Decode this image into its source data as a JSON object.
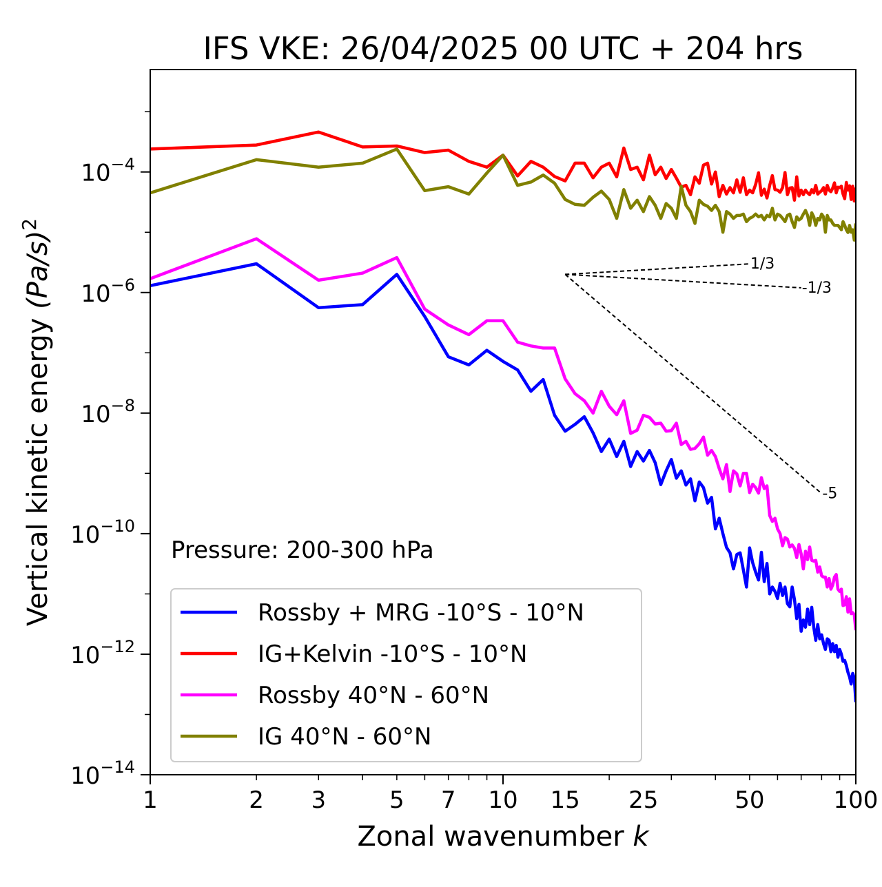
{
  "chart_data": {
    "type": "line",
    "title": "IFS VKE: 26/04/2025 00 UTC + 204 hrs",
    "xlabel": "Zonal wavenumber",
    "xlabel_var": "k",
    "ylabel_main": "Vertical kinetic energy",
    "ylabel_unit": "(Pa/s)",
    "ylabel_exp": "2",
    "xscale": "log",
    "yscale": "log",
    "xlim": [
      1,
      100
    ],
    "ylim": [
      1e-14,
      0.005
    ],
    "xticks": [
      {
        "value": 1,
        "label": "1"
      },
      {
        "value": 2,
        "label": "2"
      },
      {
        "value": 3,
        "label": "3"
      },
      {
        "value": 5,
        "label": "5"
      },
      {
        "value": 7,
        "label": "7"
      },
      {
        "value": 10,
        "label": "10"
      },
      {
        "value": 15,
        "label": "15"
      },
      {
        "value": 25,
        "label": "25"
      },
      {
        "value": 50,
        "label": "50"
      },
      {
        "value": 100,
        "label": "100"
      }
    ],
    "yticks": [
      {
        "exp": -14,
        "base": "10",
        "sup": "−14"
      },
      {
        "exp": -12,
        "base": "10",
        "sup": "−12"
      },
      {
        "exp": -10,
        "base": "10",
        "sup": "−10"
      },
      {
        "exp": -8,
        "base": "10",
        "sup": "−8"
      },
      {
        "exp": -6,
        "base": "10",
        "sup": "−6"
      },
      {
        "exp": -4,
        "base": "10",
        "sup": "−4"
      }
    ],
    "annotation": "Pressure: 200-300 hPa",
    "legend_position": "lower-left",
    "series": [
      {
        "name": "Rossby + MRG -10°S - 10°N",
        "color": "#0000ff",
        "x": [
          1,
          2,
          3,
          4,
          5,
          6,
          7,
          8,
          9,
          10,
          11,
          12,
          13,
          14,
          15,
          16,
          17,
          18,
          19,
          20,
          21,
          22,
          23,
          24,
          25,
          26,
          27,
          28,
          29,
          30,
          31,
          32,
          33,
          34,
          35,
          36,
          37,
          38,
          39,
          40,
          41,
          42,
          43,
          44,
          45,
          46,
          47,
          48,
          49,
          50,
          51,
          52,
          53,
          54,
          55,
          56,
          57,
          58,
          59,
          60,
          61,
          62,
          63,
          64,
          65,
          66,
          67,
          68,
          69,
          70,
          71,
          72,
          73,
          74,
          75,
          76,
          77,
          78,
          79,
          80,
          81,
          82,
          83,
          84,
          85,
          86,
          87,
          88,
          89,
          90,
          91,
          92,
          93,
          94,
          95,
          96,
          97,
          98,
          99,
          100
        ],
        "y": [
          1.3e-06,
          3e-06,
          5.6e-07,
          6.3e-07,
          2e-06,
          4e-07,
          8.6e-08,
          6.3e-08,
          1.1e-07,
          7.2e-08,
          5.2e-08,
          2.3e-08,
          3.6e-08,
          9.2e-09,
          5e-09,
          6.5e-09,
          8.7e-09,
          4.7e-09,
          2.3e-09,
          3.7e-09,
          1.9e-09,
          3.4e-09,
          1.3e-09,
          2.3e-09,
          1.6e-09,
          2.4e-09,
          1.5e-09,
          6.5e-10,
          1.1e-09,
          1.7e-09,
          8.3e-10,
          1.1e-09,
          6.4e-10,
          8.1e-10,
          3.5e-10,
          7.2e-10,
          5.8e-10,
          3.2e-10,
          4e-10,
          1.2e-10,
          1.8e-10,
          1e-10,
          5.9e-11,
          4.8e-11,
          2.6e-11,
          4.5e-11,
          4.8e-11,
          2.5e-11,
          1.3e-11,
          5.8e-11,
          3.3e-11,
          2.3e-11,
          1.7e-11,
          4.9e-11,
          1.6e-11,
          3.2e-11,
          1e-11,
          1.3e-11,
          1.1e-11,
          8.4e-12,
          1.5e-11,
          9.4e-12,
          1.3e-11,
          6.9e-12,
          6.1e-12,
          1.3e-11,
          8.1e-12,
          3.9e-12,
          6.7e-12,
          2.4e-12,
          3.7e-12,
          2.8e-12,
          5.6e-12,
          3.1e-12,
          6e-12,
          2.8e-12,
          1.7e-12,
          3.1e-12,
          1.8e-12,
          2.1e-12,
          1.5e-12,
          1.2e-12,
          1.8e-12,
          1.7e-12,
          1.1e-12,
          1.5e-12,
          1.1e-12,
          1.4e-12,
          8.9e-13,
          1.2e-12,
          1e-12,
          7.6e-13,
          7.9e-13,
          6.5e-13,
          5e-13,
          4.2e-13,
          3.2e-13,
          4.8e-13,
          4e-13,
          1.6e-13
        ]
      },
      {
        "name": "IG+Kelvin -10°S - 10°N",
        "color": "#ff0000",
        "x": [
          1,
          2,
          3,
          4,
          5,
          6,
          7,
          8,
          9,
          10,
          11,
          12,
          13,
          14,
          15,
          16,
          17,
          18,
          19,
          20,
          21,
          22,
          23,
          24,
          25,
          26,
          27,
          28,
          29,
          30,
          31,
          32,
          33,
          34,
          35,
          36,
          37,
          38,
          39,
          40,
          41,
          42,
          43,
          44,
          45,
          46,
          47,
          48,
          49,
          50,
          51,
          52,
          53,
          54,
          55,
          56,
          57,
          58,
          59,
          60,
          61,
          62,
          63,
          64,
          65,
          66,
          67,
          68,
          69,
          70,
          71,
          72,
          73,
          74,
          75,
          76,
          77,
          78,
          79,
          80,
          81,
          82,
          83,
          84,
          85,
          86,
          87,
          88,
          89,
          90,
          91,
          92,
          93,
          94,
          95,
          96,
          97,
          98,
          99,
          100
        ],
        "y": [
          0.00024,
          0.00028,
          0.00046,
          0.00026,
          0.00027,
          0.00021,
          0.00023,
          0.00015,
          0.00012,
          0.00019,
          8.6e-05,
          0.00015,
          0.00012,
          8.4e-05,
          7.1e-05,
          0.00014,
          0.00014,
          8e-05,
          0.00012,
          0.00014,
          8.3e-05,
          0.00025,
          0.00011,
          0.00012,
          7.4e-05,
          0.00019,
          9e-05,
          0.00012,
          7.8e-05,
          0.00011,
          7.9e-05,
          5.6e-05,
          6e-05,
          4.2e-05,
          8.3e-05,
          6.5e-05,
          0.00013,
          0.00014,
          6.3e-05,
          0.0001,
          3.9e-05,
          6e-05,
          4.3e-05,
          5.5e-05,
          4.5e-05,
          7.4e-05,
          4.6e-05,
          8e-05,
          4.2e-05,
          5e-05,
          4.5e-05,
          6.2e-05,
          9.7e-05,
          4.1e-05,
          5.2e-05,
          3.7e-05,
          6e-05,
          8.7e-05,
          5.1e-05,
          5e-05,
          4.6e-05,
          5.5e-05,
          9.8e-05,
          4.2e-05,
          5.4e-05,
          5.5e-05,
          3.4e-05,
          8.3e-05,
          4e-05,
          5e-05,
          4.2e-05,
          5e-05,
          4.5e-05,
          4.2e-05,
          5.1e-05,
          4.5e-05,
          6e-05,
          4.3e-05,
          4.6e-05,
          4.9e-05,
          5.5e-05,
          4.3e-05,
          6e-05,
          5e-05,
          4.7e-05,
          5.4e-05,
          6.6e-05,
          4.5e-05,
          5.6e-05,
          5.5e-05,
          5.8e-05,
          4.3e-05,
          3.6e-05,
          6.7e-05,
          5e-05,
          5.9e-05,
          3.5e-05,
          5.8e-05,
          3.3e-05,
          5.5e-05
        ]
      },
      {
        "name": "Rossby 40°N - 60°N",
        "color": "#ff00ff",
        "x": [
          1,
          2,
          3,
          4,
          5,
          6,
          7,
          8,
          9,
          10,
          11,
          12,
          13,
          14,
          15,
          16,
          17,
          18,
          19,
          20,
          21,
          22,
          23,
          24,
          25,
          26,
          27,
          28,
          29,
          30,
          31,
          32,
          33,
          34,
          35,
          36,
          37,
          38,
          39,
          40,
          41,
          42,
          43,
          44,
          45,
          46,
          47,
          48,
          49,
          50,
          51,
          52,
          53,
          54,
          55,
          56,
          57,
          58,
          59,
          60,
          61,
          62,
          63,
          64,
          65,
          66,
          67,
          68,
          69,
          70,
          71,
          72,
          73,
          74,
          75,
          76,
          77,
          78,
          79,
          80,
          81,
          82,
          83,
          84,
          85,
          86,
          87,
          88,
          89,
          90,
          91,
          92,
          93,
          94,
          95,
          96,
          97,
          98,
          99,
          100
        ],
        "y": [
          1.7e-06,
          7.8e-06,
          1.6e-06,
          2.1e-06,
          3.8e-06,
          5.3e-07,
          2.9e-07,
          2e-07,
          3.4e-07,
          3.4e-07,
          1.5e-07,
          1.3e-07,
          1.2e-07,
          1.2e-07,
          3.7e-08,
          2.1e-08,
          1.6e-08,
          1e-08,
          2.3e-08,
          1.3e-08,
          9.4e-09,
          1.6e-08,
          4.6e-09,
          5.2e-09,
          9.2e-09,
          8.5e-09,
          6.6e-09,
          6.8e-09,
          5e-09,
          5.1e-09,
          6.8e-09,
          3e-09,
          3.4e-09,
          2.5e-09,
          2.6e-09,
          3.1e-09,
          4e-09,
          2e-09,
          2.4e-09,
          1.9e-09,
          1.2e-09,
          8.1e-10,
          1.4e-09,
          5e-10,
          1.1e-09,
          9.8e-10,
          6.2e-10,
          1e-09,
          1e-09,
          4.8e-10,
          6.6e-10,
          5.8e-10,
          4.7e-10,
          8.5e-10,
          5.6e-10,
          6.2e-10,
          2e-10,
          1.6e-10,
          1.8e-10,
          1.2e-10,
          1e-10,
          6.3e-11,
          8.6e-11,
          8.1e-11,
          6e-11,
          6.5e-11,
          5.7e-11,
          4e-11,
          6.6e-11,
          4.6e-11,
          2.6e-11,
          5.1e-11,
          3.7e-11,
          6e-11,
          3.6e-11,
          3.5e-11,
          3.6e-11,
          2.3e-11,
          2.8e-11,
          2e-11,
          1.9e-11,
          1.9e-11,
          1.3e-11,
          1.8e-11,
          1.2e-11,
          1.4e-11,
          1.9e-11,
          2.1e-11,
          1.2e-11,
          1.1e-11,
          1.2e-11,
          6.4e-12,
          6.6e-12,
          9e-12,
          5e-12,
          8.3e-12,
          4.7e-12,
          4.9e-12,
          4.5e-12,
          2.5e-12
        ]
      },
      {
        "name": "IG 40°N - 60°N",
        "color": "#808000",
        "x": [
          1,
          2,
          3,
          4,
          5,
          6,
          7,
          8,
          9,
          10,
          11,
          12,
          13,
          14,
          15,
          16,
          17,
          18,
          19,
          20,
          21,
          22,
          23,
          24,
          25,
          26,
          27,
          28,
          29,
          30,
          31,
          32,
          33,
          34,
          35,
          36,
          37,
          38,
          39,
          40,
          41,
          42,
          43,
          44,
          45,
          46,
          47,
          48,
          49,
          50,
          51,
          52,
          53,
          54,
          55,
          56,
          57,
          58,
          59,
          60,
          61,
          62,
          63,
          64,
          65,
          66,
          67,
          68,
          69,
          70,
          71,
          72,
          73,
          74,
          75,
          76,
          77,
          78,
          79,
          80,
          81,
          82,
          83,
          84,
          85,
          86,
          87,
          88,
          89,
          90,
          91,
          92,
          93,
          94,
          95,
          96,
          97,
          98,
          99,
          100
        ],
        "y": [
          4.5e-05,
          0.00016,
          0.00012,
          0.00014,
          0.00024,
          4.9e-05,
          5.7e-05,
          4.3e-05,
          9.6e-05,
          0.00019,
          6e-05,
          6.8e-05,
          8.9e-05,
          6.5e-05,
          3.5e-05,
          2.9e-05,
          2.8e-05,
          3.8e-05,
          4.8e-05,
          3.5e-05,
          1.7e-05,
          5.1e-05,
          2.5e-05,
          3.4e-05,
          2.2e-05,
          3.9e-05,
          2.8e-05,
          1.7e-05,
          3e-05,
          2.5e-05,
          1.7e-05,
          5.8e-05,
          2.8e-05,
          2.2e-05,
          1.4e-05,
          3.4e-05,
          2.9e-05,
          2.7e-05,
          2.3e-05,
          2.8e-05,
          2.2e-05,
          1e-05,
          2.2e-05,
          2e-05,
          1.7e-05,
          1.9e-05,
          1.9e-05,
          2e-05,
          1.5e-05,
          1.7e-05,
          1.8e-05,
          2e-05,
          1.8e-05,
          1.9e-05,
          1.6e-05,
          1.9e-05,
          1.8e-05,
          2.5e-05,
          1.6e-05,
          2e-05,
          1.9e-05,
          1.7e-05,
          1.5e-05,
          1.9e-05,
          2e-05,
          1.5e-05,
          1.2e-05,
          1.8e-05,
          1.6e-05,
          1.7e-05,
          2e-05,
          2.3e-05,
          1.9e-05,
          1.3e-05,
          2.1e-05,
          1.8e-05,
          1.3e-05,
          1.7e-05,
          1.6e-05,
          2e-05,
          1.8e-05,
          1e-05,
          1.9e-05,
          1.6e-05,
          1.6e-05,
          1.4e-05,
          1.3e-05,
          1.3e-05,
          1.3e-05,
          1.2e-05,
          1.1e-05,
          1.5e-05,
          1.3e-05,
          1.1e-05,
          9.9e-06,
          1.3e-05,
          1e-05,
          1.1e-05,
          7.4e-06,
          1.4e-05
        ]
      }
    ],
    "reference_slopes": [
      {
        "label": "1/3",
        "slope": 0.3333,
        "x0": 15,
        "y0": 2e-06,
        "x1": 50
      },
      {
        "label": "-1/3",
        "slope": -0.3333,
        "x0": 15,
        "y0": 2e-06,
        "x1": 70
      },
      {
        "label": "-5",
        "slope": -5,
        "x0": 15,
        "y0": 2e-06,
        "x1": 80
      }
    ]
  }
}
